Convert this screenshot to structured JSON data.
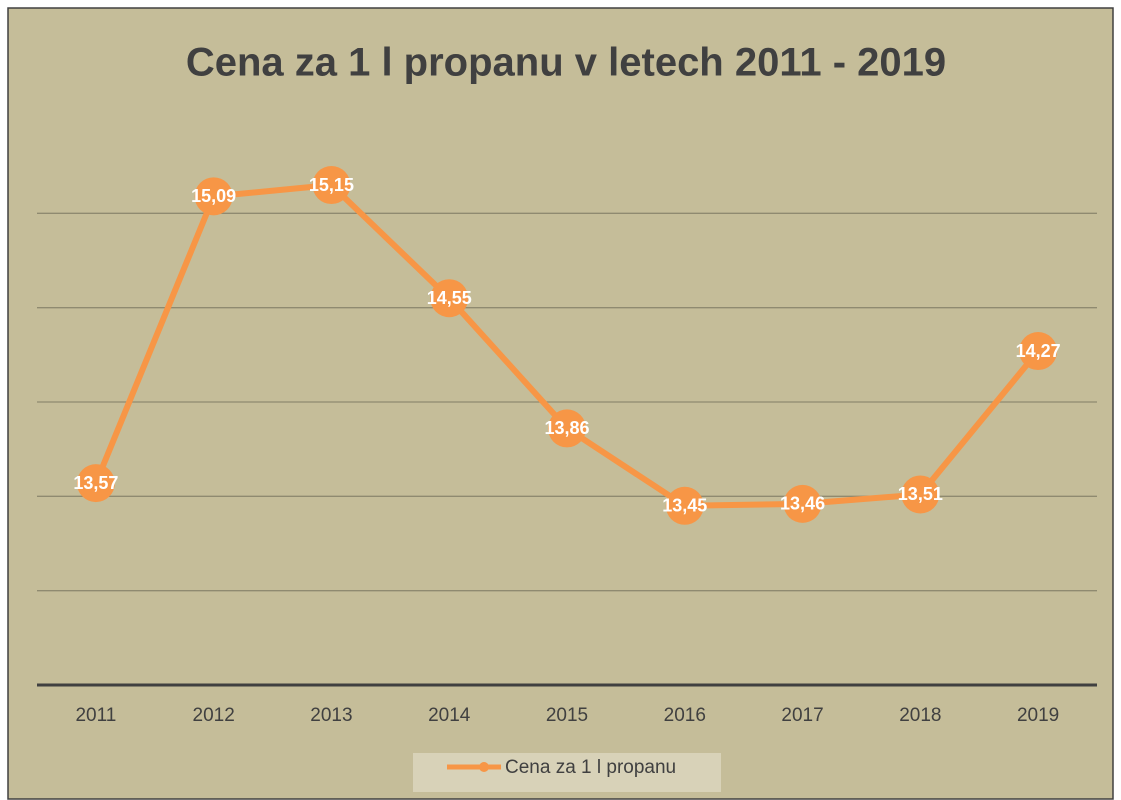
{
  "chart_data": {
    "type": "line",
    "title": "Cena za 1 l propanu v letech 2011 - 2019",
    "categories": [
      "2011",
      "2012",
      "2013",
      "2014",
      "2015",
      "2016",
      "2017",
      "2018",
      "2019"
    ],
    "series": [
      {
        "name": "Cena za 1 l propanu",
        "color": "#f79646",
        "values": [
          13.57,
          15.09,
          15.15,
          14.55,
          13.86,
          13.45,
          13.46,
          13.51,
          14.27
        ],
        "value_labels": [
          "13,57",
          "15,09",
          "15,15",
          "14,55",
          "13,86",
          "13,45",
          "13,46",
          "13,51",
          "14,27"
        ]
      }
    ],
    "ylim": [
      12.5,
      15.5
    ],
    "yticks": [
      12.5,
      13,
      13.5,
      14,
      14.5,
      15
    ],
    "grid": true,
    "legend": "bottom"
  }
}
